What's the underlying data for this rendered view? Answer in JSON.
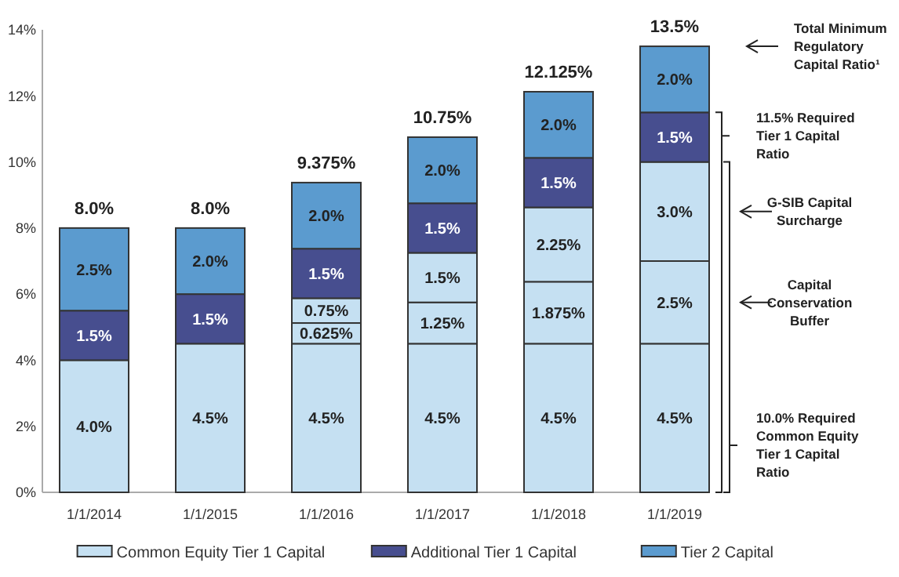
{
  "chart_data": {
    "type": "bar",
    "stacked": true,
    "categories": [
      "1/1/2014",
      "1/1/2015",
      "1/1/2016",
      "1/1/2017",
      "1/1/2018",
      "1/1/2019"
    ],
    "series": [
      {
        "name": "Common Equity Tier 1 Capital",
        "color": "#c5e0f2",
        "values": [
          4.0,
          4.5,
          4.5,
          4.5,
          4.5,
          4.5
        ],
        "value_labels": [
          "4.0%",
          "4.5%",
          "4.5%",
          "4.5%",
          "4.5%",
          "4.5%"
        ]
      },
      {
        "color": "#c5e0f2",
        "values": [
          null,
          null,
          0.625,
          1.25,
          1.875,
          2.5
        ],
        "value_labels": [
          null,
          null,
          "0.625%",
          "1.25%",
          "1.875%",
          "2.5%"
        ]
      },
      {
        "color": "#c5e0f2",
        "values": [
          null,
          null,
          0.75,
          1.5,
          2.25,
          3.0
        ],
        "value_labels": [
          null,
          null,
          "0.75%",
          "1.5%",
          "2.25%",
          "3.0%"
        ]
      },
      {
        "name": "Additional Tier 1 Capital",
        "color": "#474e8f",
        "values": [
          1.5,
          1.5,
          1.5,
          1.5,
          1.5,
          1.5
        ],
        "value_labels": [
          "1.5%",
          "1.5%",
          "1.5%",
          "1.5%",
          "1.5%",
          "1.5%"
        ]
      },
      {
        "name": "Tier 2 Capital",
        "color": "#5b9bcf",
        "values": [
          2.5,
          2.0,
          2.0,
          2.0,
          2.0,
          2.0
        ],
        "value_labels": [
          "2.5%",
          "2.0%",
          "2.0%",
          "2.0%",
          "2.0%",
          "2.0%"
        ]
      }
    ],
    "totals": [
      "8.0%",
      "8.0%",
      "9.375%",
      "10.75%",
      "12.125%",
      "13.5%"
    ],
    "ylim": [
      0,
      14
    ],
    "yticks": [
      {
        "value": 0,
        "label": "0%"
      },
      {
        "value": 2,
        "label": "2%"
      },
      {
        "value": 4,
        "label": "4%"
      },
      {
        "value": 6,
        "label": "6%"
      },
      {
        "value": 8,
        "label": "8%"
      },
      {
        "value": 10,
        "label": "10%"
      },
      {
        "value": 12,
        "label": "12%"
      },
      {
        "value": 14,
        "label": "14%"
      }
    ],
    "grid": false,
    "legend": "bottom",
    "annotations": [
      "Total Minimum Regulatory Capital Ratio¹",
      "11.5% Required Tier 1 Capital Ratio",
      "G-SIB Capital Surcharge",
      "Capital Conservation Buffer",
      "10.0% Required Common Equity Tier 1 Capital Ratio"
    ]
  }
}
